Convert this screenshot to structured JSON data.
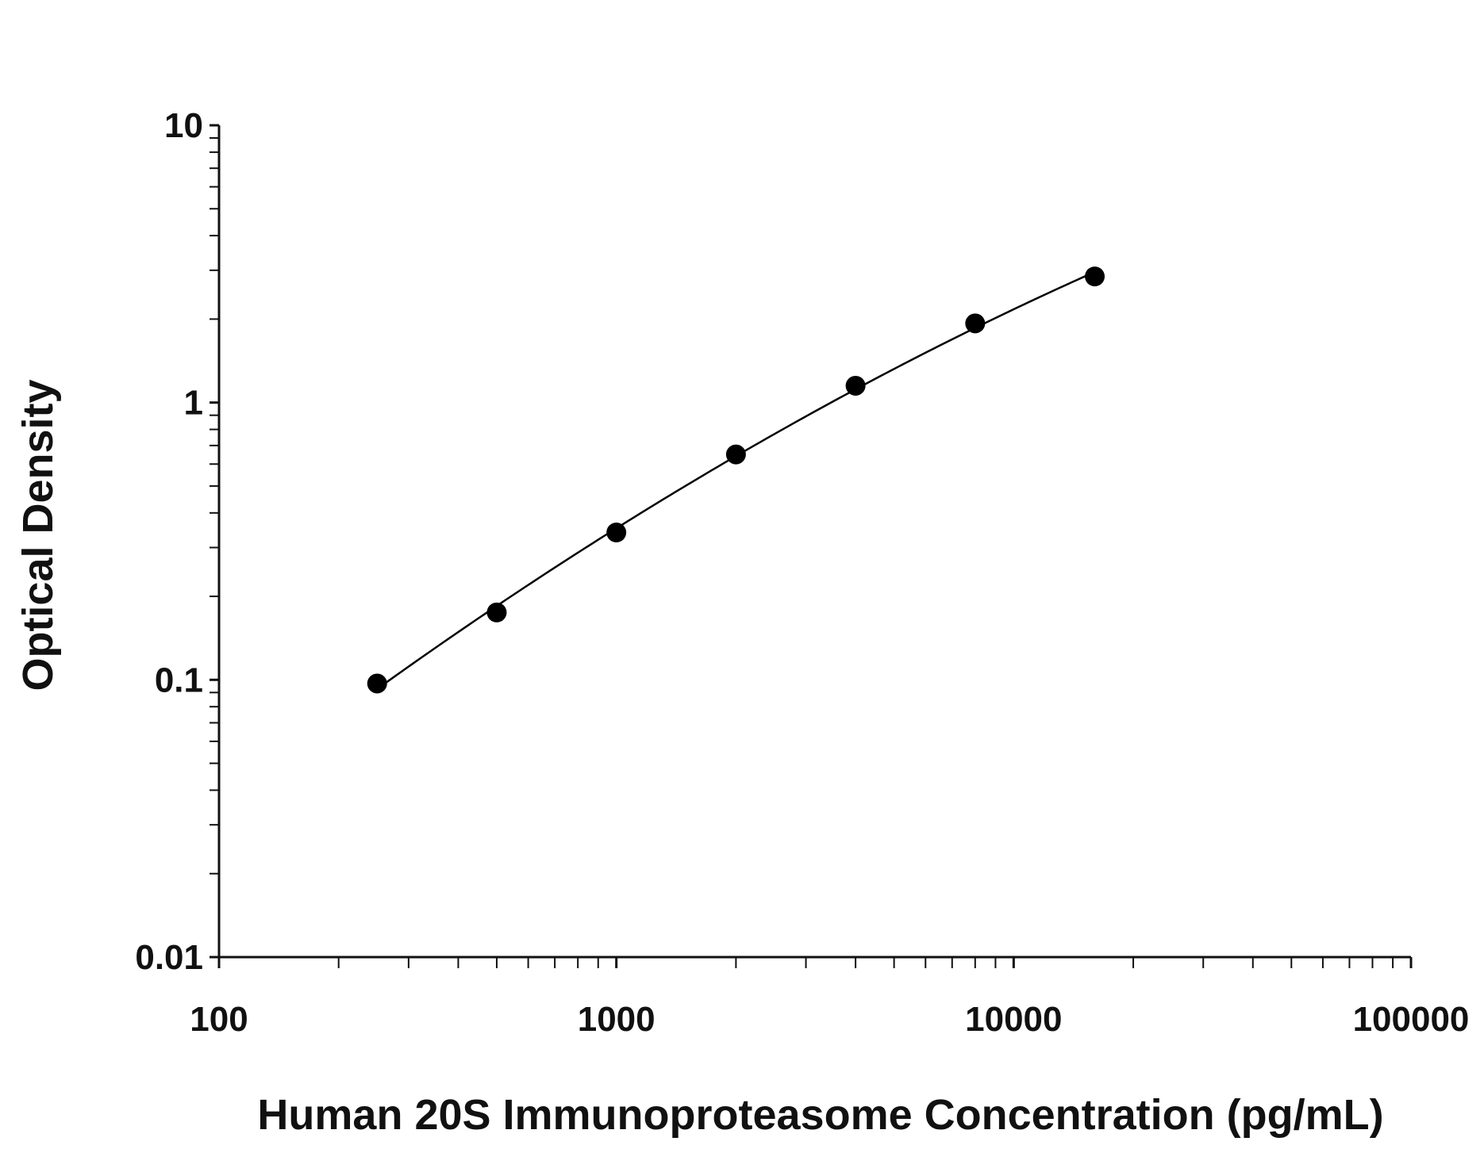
{
  "chart_data": {
    "type": "scatter",
    "title": "",
    "xlabel": "Human 20S Immunoproteasome Concentration (pg/mL)",
    "ylabel": "Optical Density",
    "x_scale": "log",
    "y_scale": "log",
    "xlim": [
      100,
      100000
    ],
    "ylim": [
      0.01,
      10
    ],
    "x_ticks": [
      "100",
      "1000",
      "10000",
      "100000"
    ],
    "y_ticks": [
      "0.01",
      "0.1",
      "1",
      "10"
    ],
    "grid": false,
    "legend": "none",
    "series": [
      {
        "marker": "filled-circle",
        "fit_line": true,
        "color": "#000000",
        "points": [
          {
            "x": 250,
            "y": 0.097
          },
          {
            "x": 500,
            "y": 0.175
          },
          {
            "x": 1000,
            "y": 0.34
          },
          {
            "x": 2000,
            "y": 0.65
          },
          {
            "x": 4000,
            "y": 1.15
          },
          {
            "x": 8000,
            "y": 1.93
          },
          {
            "x": 16000,
            "y": 2.85
          }
        ]
      }
    ]
  }
}
